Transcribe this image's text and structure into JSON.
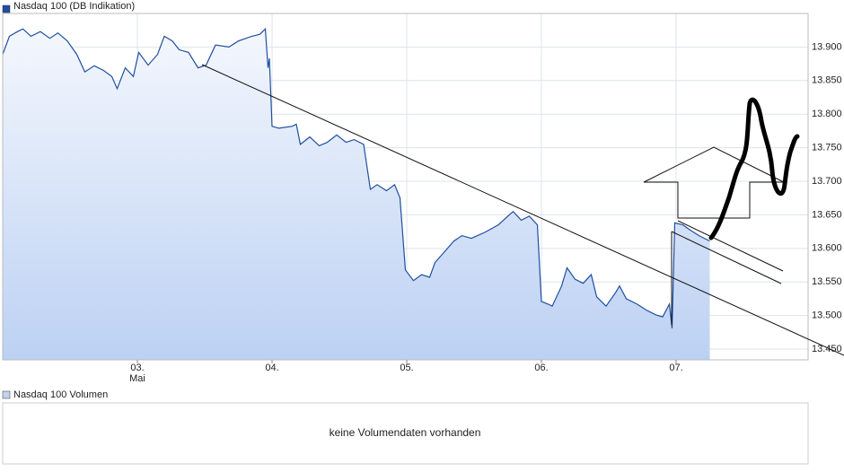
{
  "chart_data": {
    "type": "line",
    "title": "Nasdaq 100 (DB Indikation)",
    "month_label": "Mai",
    "x": [
      2.0,
      2.05,
      2.11,
      2.15,
      2.21,
      2.28,
      2.35,
      2.41,
      2.48,
      2.55,
      2.61,
      2.68,
      2.75,
      2.81,
      2.85,
      2.91,
      2.97,
      3.01,
      3.08,
      3.15,
      3.2,
      3.26,
      3.31,
      3.38,
      3.45,
      3.51,
      3.58,
      3.68,
      3.75,
      3.85,
      3.91,
      3.95,
      3.97,
      3.98,
      4.0,
      4.05,
      4.15,
      4.18,
      4.21,
      4.28,
      4.35,
      4.41,
      4.48,
      4.55,
      4.61,
      4.68,
      4.73,
      4.78,
      4.85,
      4.91,
      4.95,
      4.99,
      5.05,
      5.11,
      5.17,
      5.21,
      5.28,
      5.35,
      5.41,
      5.48,
      5.58,
      5.68,
      5.75,
      5.79,
      5.85,
      5.91,
      5.97,
      6.0,
      6.05,
      6.08,
      6.15,
      6.19,
      6.25,
      6.31,
      6.37,
      6.41,
      6.48,
      6.55,
      6.58,
      6.63,
      6.71,
      6.78,
      6.85,
      6.9,
      6.95,
      6.97,
      6.99,
      7.05,
      7.1,
      7.17,
      7.25
    ],
    "series": [
      {
        "name": "Nasdaq 100",
        "color": "#1f4fa0",
        "values": [
          13889,
          13916,
          13923,
          13927,
          13916,
          13923,
          13913,
          13921,
          13909,
          13889,
          13863,
          13872,
          13865,
          13856,
          13838,
          13869,
          13856,
          13892,
          13873,
          13889,
          13916,
          13909,
          13896,
          13892,
          13869,
          13873,
          13903,
          13900,
          13909,
          13916,
          13919,
          13927,
          13869,
          13883,
          13782,
          13779,
          13782,
          13785,
          13755,
          13766,
          13753,
          13758,
          13769,
          13758,
          13762,
          13755,
          13688,
          13695,
          13686,
          13695,
          13675,
          13568,
          13552,
          13561,
          13557,
          13579,
          13595,
          13611,
          13619,
          13615,
          13624,
          13635,
          13648,
          13655,
          13642,
          13648,
          13635,
          13521,
          13517,
          13514,
          13544,
          13571,
          13554,
          13548,
          13561,
          13528,
          13514,
          13534,
          13544,
          13525,
          13517,
          13508,
          13501,
          13498,
          13517,
          13481,
          13638,
          13635,
          13628,
          13619,
          13611
        ]
      }
    ],
    "xlim": [
      2,
      7.98
    ],
    "xticks": [
      {
        "value": 3,
        "label": "03."
      },
      {
        "value": 4,
        "label": "04."
      },
      {
        "value": 5,
        "label": "05."
      },
      {
        "value": 6,
        "label": "06."
      },
      {
        "value": 7,
        "label": "07."
      }
    ],
    "ylim": [
      13434,
      13950
    ],
    "yticks": [
      {
        "value": 13450,
        "label": "13.450"
      },
      {
        "value": 13500,
        "label": "13.500"
      },
      {
        "value": 13550,
        "label": "13.550"
      },
      {
        "value": 13600,
        "label": "13.600"
      },
      {
        "value": 13650,
        "label": "13.650"
      },
      {
        "value": 13700,
        "label": "13.700"
      },
      {
        "value": 13750,
        "label": "13.750"
      },
      {
        "value": 13800,
        "label": "13.800"
      },
      {
        "value": 13850,
        "label": "13.850"
      },
      {
        "value": 13900,
        "label": "13.900"
      }
    ],
    "grid": true,
    "volume_title": "Nasdaq 100 Volumen",
    "volume_message": "keine Volumendaten vorhanden"
  }
}
